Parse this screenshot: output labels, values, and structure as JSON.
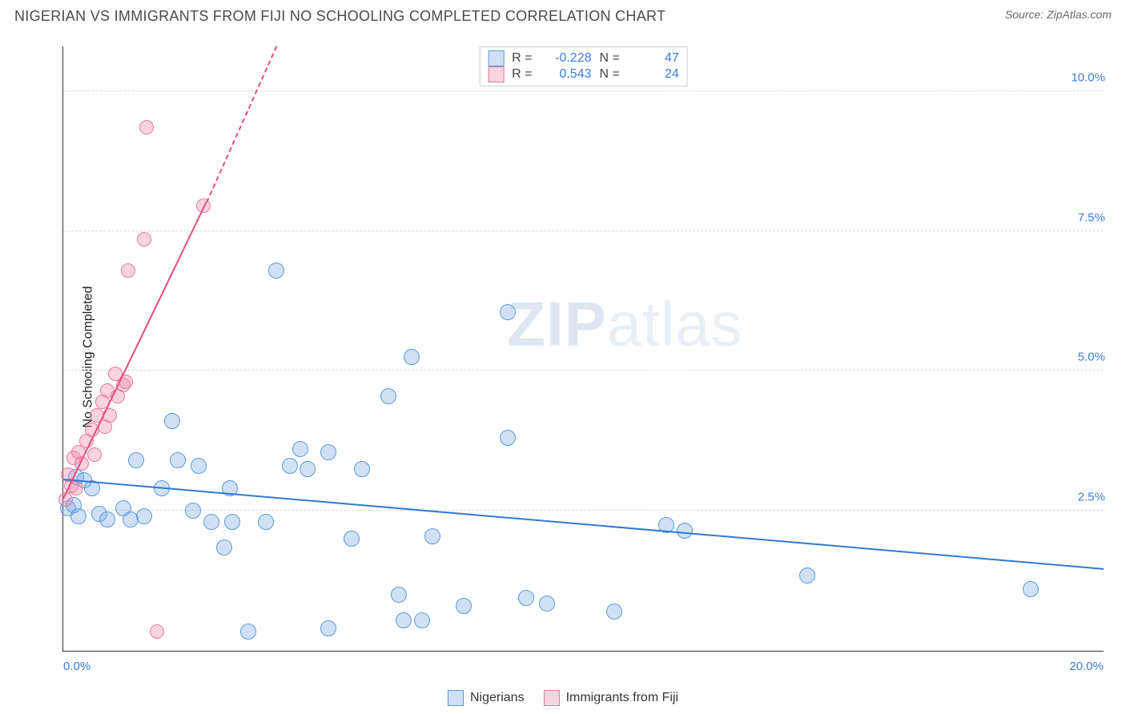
{
  "title": "NIGERIAN VS IMMIGRANTS FROM FIJI NO SCHOOLING COMPLETED CORRELATION CHART",
  "source": "Source: ZipAtlas.com",
  "y_axis_label": "No Schooling Completed",
  "watermark_bold": "ZIP",
  "watermark_rest": "atlas",
  "chart": {
    "type": "scatter",
    "xlim": [
      0,
      20
    ],
    "ylim": [
      0,
      10.8
    ],
    "x_ticks": [
      {
        "v": 0,
        "label": "0.0%"
      },
      {
        "v": 20,
        "label": "20.0%"
      }
    ],
    "y_ticks": [
      {
        "v": 2.5,
        "label": "2.5%"
      },
      {
        "v": 5.0,
        "label": "5.0%"
      },
      {
        "v": 7.5,
        "label": "7.5%"
      },
      {
        "v": 10.0,
        "label": "10.0%"
      }
    ],
    "grid_color": "#d8d8d8",
    "background_color": "#ffffff",
    "series": [
      {
        "name": "Nigerians",
        "marker_fill": "rgba(120,170,230,0.35)",
        "marker_stroke": "#5a9bd8",
        "marker_radius": 10,
        "trend_color": "#2f7ad1",
        "trend": {
          "x1": 0,
          "y1": 3.05,
          "x2": 20,
          "y2": 1.45
        },
        "R": "-0.228",
        "N": "47",
        "points": [
          [
            0.1,
            2.55
          ],
          [
            0.2,
            2.6
          ],
          [
            0.25,
            3.1
          ],
          [
            0.3,
            2.4
          ],
          [
            0.4,
            3.05
          ],
          [
            0.55,
            2.9
          ],
          [
            0.7,
            2.45
          ],
          [
            0.85,
            2.35
          ],
          [
            1.15,
            2.55
          ],
          [
            1.3,
            2.35
          ],
          [
            1.4,
            3.4
          ],
          [
            1.55,
            2.4
          ],
          [
            1.9,
            2.9
          ],
          [
            2.1,
            4.1
          ],
          [
            2.2,
            3.4
          ],
          [
            2.5,
            2.5
          ],
          [
            2.6,
            3.3
          ],
          [
            2.85,
            2.3
          ],
          [
            3.1,
            1.85
          ],
          [
            3.2,
            2.9
          ],
          [
            3.25,
            2.3
          ],
          [
            3.55,
            0.35
          ],
          [
            3.9,
            2.3
          ],
          [
            4.1,
            6.8
          ],
          [
            4.35,
            3.3
          ],
          [
            4.55,
            3.6
          ],
          [
            4.7,
            3.25
          ],
          [
            5.1,
            3.55
          ],
          [
            5.1,
            0.4
          ],
          [
            5.55,
            2.0
          ],
          [
            5.75,
            3.25
          ],
          [
            6.25,
            4.55
          ],
          [
            6.45,
            1.0
          ],
          [
            6.55,
            0.55
          ],
          [
            6.7,
            5.25
          ],
          [
            6.9,
            0.55
          ],
          [
            7.1,
            2.05
          ],
          [
            7.7,
            0.8
          ],
          [
            8.55,
            3.8
          ],
          [
            8.55,
            6.05
          ],
          [
            8.9,
            0.95
          ],
          [
            9.3,
            0.85
          ],
          [
            10.6,
            0.7
          ],
          [
            11.6,
            2.25
          ],
          [
            11.95,
            2.15
          ],
          [
            14.3,
            1.35
          ],
          [
            18.6,
            1.1
          ]
        ]
      },
      {
        "name": "Immigrants from Fiji",
        "marker_fill": "rgba(240,140,170,0.38)",
        "marker_stroke": "#e57aa0",
        "marker_radius": 9,
        "trend_color": "#e84c7f",
        "trend": {
          "x1": 0,
          "y1": 2.7,
          "x2": 2.75,
          "y2": 8.0
        },
        "trend_dash": {
          "x1": 2.75,
          "y1": 8.0,
          "x2": 4.1,
          "y2": 10.8
        },
        "R": "0.543",
        "N": "24",
        "points": [
          [
            0.05,
            2.7
          ],
          [
            0.1,
            3.15
          ],
          [
            0.15,
            2.95
          ],
          [
            0.2,
            3.45
          ],
          [
            0.25,
            2.9
          ],
          [
            0.3,
            3.55
          ],
          [
            0.35,
            3.35
          ],
          [
            0.45,
            3.75
          ],
          [
            0.55,
            3.95
          ],
          [
            0.6,
            3.5
          ],
          [
            0.65,
            4.2
          ],
          [
            0.75,
            4.45
          ],
          [
            0.8,
            4.0
          ],
          [
            0.85,
            4.65
          ],
          [
            0.9,
            4.2
          ],
          [
            1.0,
            4.95
          ],
          [
            1.05,
            4.55
          ],
          [
            1.15,
            4.75
          ],
          [
            1.2,
            4.8
          ],
          [
            1.25,
            6.8
          ],
          [
            1.55,
            7.35
          ],
          [
            1.6,
            9.35
          ],
          [
            1.8,
            0.35
          ],
          [
            2.7,
            7.95
          ]
        ]
      }
    ]
  },
  "legend_top": {
    "R_label": "R =",
    "N_label": "N ="
  }
}
